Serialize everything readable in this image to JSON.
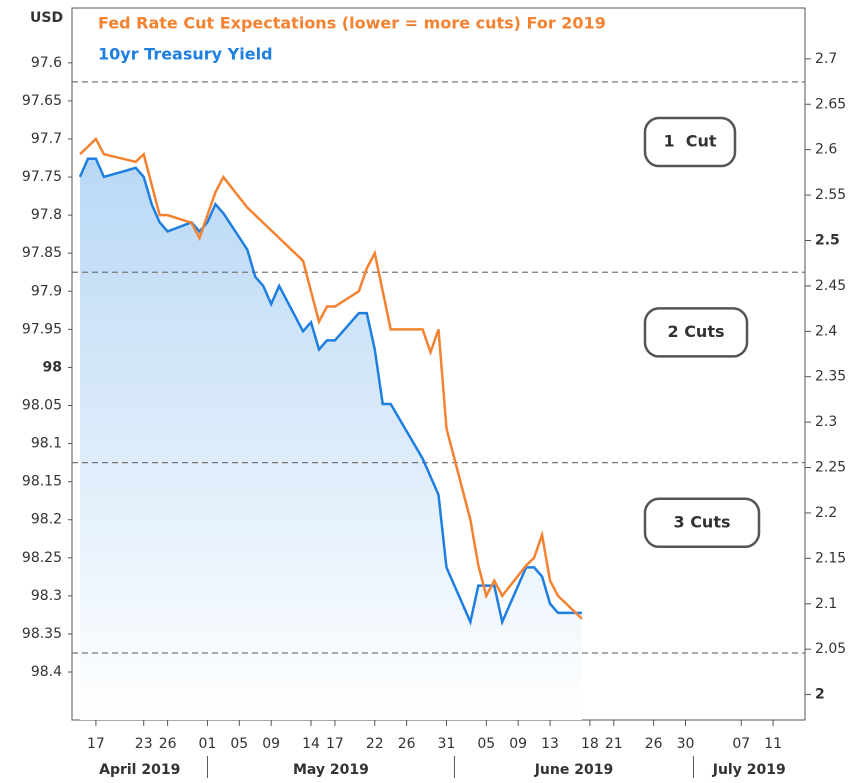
{
  "chart_data": {
    "type": "line",
    "title": "Fed Rate Cut Expectations (lower = more cuts) For 2019",
    "ylabel": "USD",
    "x": [
      "2019-04-15",
      "2019-04-16",
      "2019-04-17",
      "2019-04-18",
      "2019-04-22",
      "2019-04-23",
      "2019-04-24",
      "2019-04-25",
      "2019-04-26",
      "2019-04-29",
      "2019-04-30",
      "2019-05-01",
      "2019-05-02",
      "2019-05-03",
      "2019-05-06",
      "2019-05-07",
      "2019-05-08",
      "2019-05-09",
      "2019-05-10",
      "2019-05-13",
      "2019-05-14",
      "2019-05-15",
      "2019-05-16",
      "2019-05-17",
      "2019-05-20",
      "2019-05-21",
      "2019-05-22",
      "2019-05-23",
      "2019-05-24",
      "2019-05-28",
      "2019-05-29",
      "2019-05-30",
      "2019-05-31",
      "2019-06-03",
      "2019-06-04",
      "2019-06-05",
      "2019-06-06",
      "2019-06-07",
      "2019-06-10",
      "2019-06-11",
      "2019-06-12",
      "2019-06-13",
      "2019-06-14",
      "2019-06-17"
    ],
    "series": [
      {
        "name": "Fed Rate Cut Expectations (lower = more cuts) For 2019",
        "color": "#f58231",
        "axis": "y",
        "values": [
          97.72,
          97.71,
          97.7,
          97.72,
          97.73,
          97.72,
          97.76,
          97.8,
          97.8,
          97.81,
          97.83,
          97.8,
          97.77,
          97.75,
          97.79,
          97.8,
          97.81,
          97.82,
          97.83,
          97.86,
          97.9,
          97.94,
          97.92,
          97.92,
          97.9,
          97.87,
          97.85,
          97.9,
          97.95,
          97.95,
          97.98,
          97.95,
          98.08,
          98.2,
          98.26,
          98.3,
          98.28,
          98.3,
          98.26,
          98.25,
          98.22,
          98.28,
          98.3,
          98.33
        ]
      },
      {
        "name": "10yr Treasury Yield",
        "color": "#1e7fe0",
        "axis": "y2",
        "values": [
          2.57,
          2.59,
          2.59,
          2.57,
          2.58,
          2.57,
          2.54,
          2.52,
          2.51,
          2.52,
          2.51,
          2.52,
          2.54,
          2.53,
          2.49,
          2.46,
          2.45,
          2.43,
          2.45,
          2.4,
          2.41,
          2.38,
          2.39,
          2.39,
          2.42,
          2.42,
          2.38,
          2.32,
          2.32,
          2.26,
          2.24,
          2.22,
          2.14,
          2.08,
          2.12,
          2.12,
          2.12,
          2.08,
          2.14,
          2.14,
          2.13,
          2.1,
          2.09,
          2.09
        ]
      }
    ],
    "xlim": [
      "2019-04-14",
      "2019-07-15"
    ],
    "xticks": [
      {
        "value": "2019-04-17",
        "label": "17"
      },
      {
        "value": "2019-04-23",
        "label": "23"
      },
      {
        "value": "2019-04-26",
        "label": "26"
      },
      {
        "value": "2019-05-01",
        "label": "01"
      },
      {
        "value": "2019-05-05",
        "label": "05"
      },
      {
        "value": "2019-05-09",
        "label": "09"
      },
      {
        "value": "2019-05-14",
        "label": "14"
      },
      {
        "value": "2019-05-17",
        "label": "17"
      },
      {
        "value": "2019-05-22",
        "label": "22"
      },
      {
        "value": "2019-05-26",
        "label": "26"
      },
      {
        "value": "2019-05-31",
        "label": "31"
      },
      {
        "value": "2019-06-05",
        "label": "05"
      },
      {
        "value": "2019-06-09",
        "label": "09"
      },
      {
        "value": "2019-06-13",
        "label": "13"
      },
      {
        "value": "2019-06-18",
        "label": "18"
      },
      {
        "value": "2019-06-21",
        "label": "21"
      },
      {
        "value": "2019-06-26",
        "label": "26"
      },
      {
        "value": "2019-06-30",
        "label": "30"
      },
      {
        "value": "2019-07-07",
        "label": "07"
      },
      {
        "value": "2019-07-11",
        "label": "11"
      }
    ],
    "months": [
      {
        "value": "2019-04",
        "label": "April 2019"
      },
      {
        "value": "2019-05",
        "label": "May 2019"
      },
      {
        "value": "2019-06",
        "label": "June 2019"
      },
      {
        "value": "2019-07",
        "label": "July 2019"
      }
    ],
    "ylim": [
      98.463,
      97.528
    ],
    "yticks": [
      97.6,
      97.65,
      97.7,
      97.75,
      97.8,
      97.85,
      97.9,
      97.95,
      98,
      98.05,
      98.1,
      98.15,
      98.2,
      98.25,
      98.3,
      98.35,
      98.4
    ],
    "y2lim": [
      1.972,
      2.756
    ],
    "y2ticks": [
      2.7,
      2.65,
      2.6,
      2.55,
      2.5,
      2.45,
      2.4,
      2.35,
      2.3,
      2.25,
      2.2,
      2.15,
      2.1,
      2.05,
      2
    ],
    "reference_lines": [
      97.625,
      97.875,
      98.125,
      98.375
    ],
    "annotations": [
      "1  Cut",
      "2 Cuts",
      "3 Cuts"
    ]
  }
}
